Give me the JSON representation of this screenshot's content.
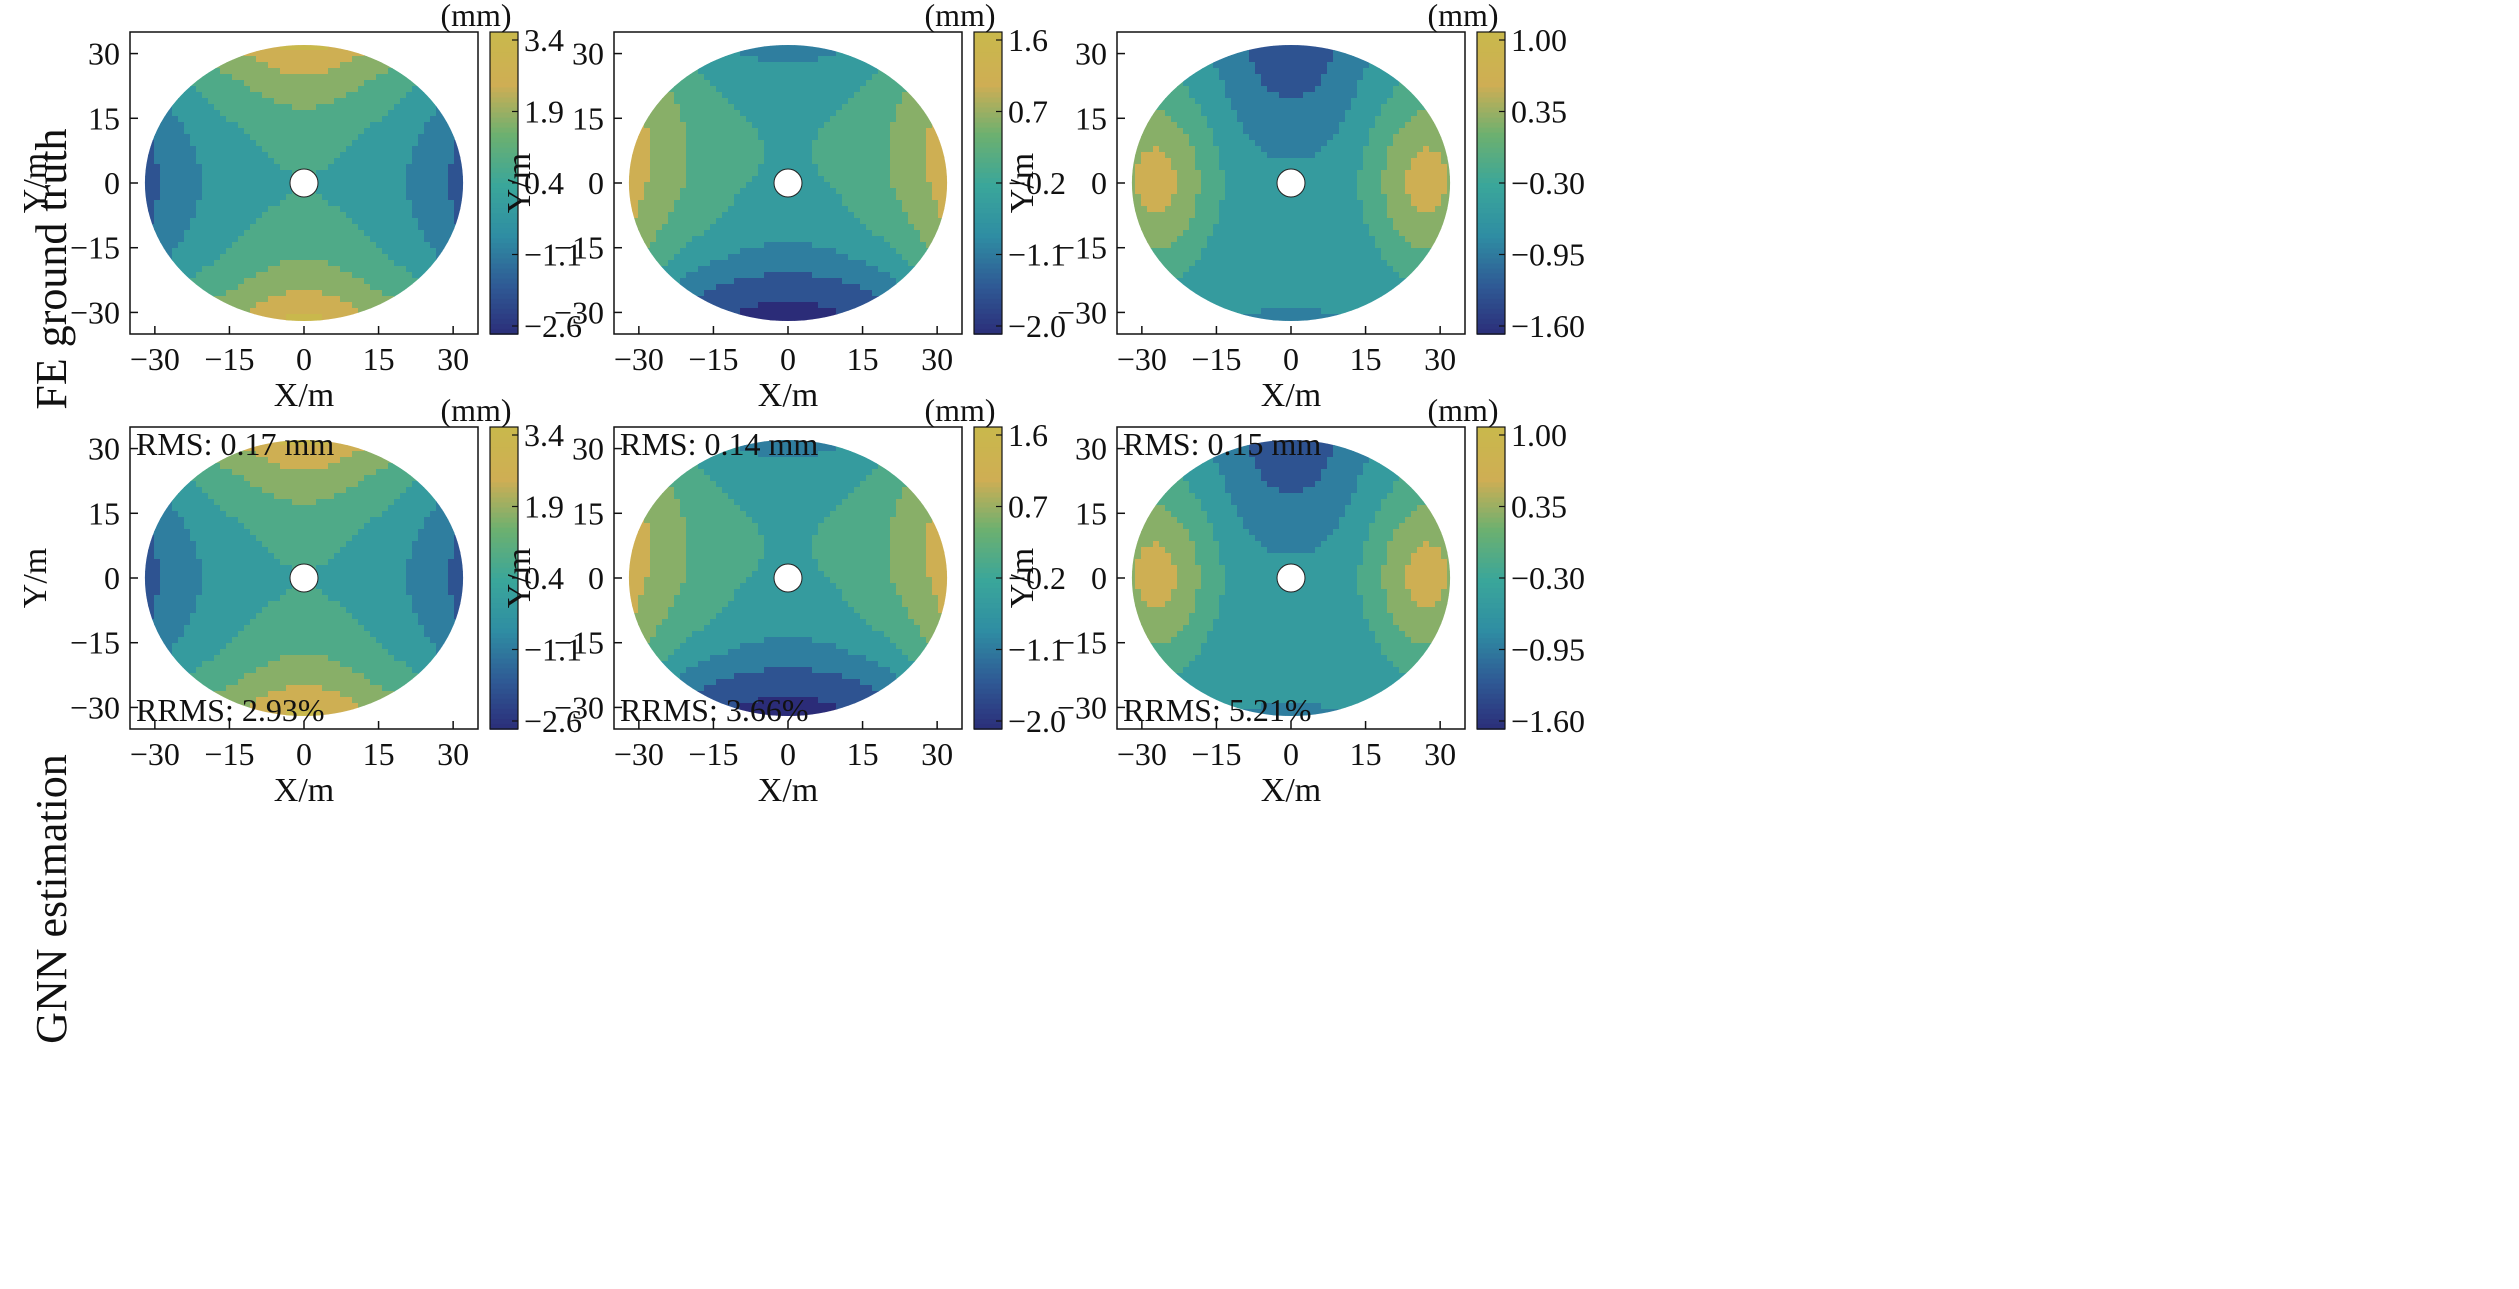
{
  "rows": [
    {
      "label": "FE ground truth",
      "ylabel": "Y/m"
    },
    {
      "label": "GNN estimation",
      "ylabel": "Y/m"
    }
  ],
  "colormap": [
    "#2b2c78",
    "#2f5a95",
    "#2f8da3",
    "#3aa69a",
    "#6cb070",
    "#cfae54",
    "#c9b84c"
  ],
  "chart_data": [
    {
      "type": "heatmap",
      "row": 0,
      "col": 0,
      "xlabel": "X/m",
      "ylabel": "Y/m",
      "xlim": [
        -35,
        35
      ],
      "ylim": [
        -35,
        35
      ],
      "xticks": [
        -30,
        -15,
        0,
        15,
        30
      ],
      "yticks": [
        -30,
        -15,
        0,
        15,
        30
      ],
      "colorbar": {
        "unit": "(mm)",
        "min": -2.6,
        "max": 3.4,
        "ticks": [
          "3.4",
          "1.9",
          "0.4",
          "−1.1",
          "−2.6"
        ]
      },
      "pattern": "saddle",
      "rms": null,
      "rrms": null
    },
    {
      "type": "heatmap",
      "row": 0,
      "col": 1,
      "xlabel": "X/m",
      "ylabel": "Y/m",
      "xlim": [
        -35,
        35
      ],
      "ylim": [
        -35,
        35
      ],
      "xticks": [
        -30,
        -15,
        0,
        15,
        30
      ],
      "yticks": [
        -30,
        -15,
        0,
        15,
        30
      ],
      "colorbar": {
        "unit": "(mm)",
        "min": -2.0,
        "max": 1.6,
        "ticks": [
          "1.6",
          "0.7",
          "−0.2",
          "−1.1",
          "−2.0"
        ]
      },
      "pattern": "hourglass",
      "rms": null,
      "rrms": null
    },
    {
      "type": "heatmap",
      "row": 0,
      "col": 2,
      "xlabel": "X/m",
      "ylabel": "Y/m",
      "xlim": [
        -35,
        35
      ],
      "ylim": [
        -35,
        35
      ],
      "xticks": [
        -30,
        -15,
        0,
        15,
        30
      ],
      "yticks": [
        -30,
        -15,
        0,
        15,
        30
      ],
      "colorbar": {
        "unit": "(mm)",
        "min": -1.6,
        "max": 1.0,
        "ticks": [
          "1.00",
          "0.35",
          "−0.30",
          "−0.95",
          "−1.60"
        ]
      },
      "pattern": "sides",
      "rms": null,
      "rrms": null
    },
    {
      "type": "heatmap",
      "row": 1,
      "col": 0,
      "xlabel": "X/m",
      "ylabel": "Y/m",
      "xlim": [
        -35,
        35
      ],
      "ylim": [
        -35,
        35
      ],
      "xticks": [
        -30,
        -15,
        0,
        15,
        30
      ],
      "yticks": [
        -30,
        -15,
        0,
        15,
        30
      ],
      "colorbar": {
        "unit": "(mm)",
        "min": -2.6,
        "max": 3.4,
        "ticks": [
          "3.4",
          "1.9",
          "0.4",
          "−1.1",
          "−2.6"
        ]
      },
      "pattern": "saddle",
      "rms": "RMS: 0.17 mm",
      "rrms": "RRMS: 2.93%"
    },
    {
      "type": "heatmap",
      "row": 1,
      "col": 1,
      "xlabel": "X/m",
      "ylabel": "Y/m",
      "xlim": [
        -35,
        35
      ],
      "ylim": [
        -35,
        35
      ],
      "xticks": [
        -30,
        -15,
        0,
        15,
        30
      ],
      "yticks": [
        -30,
        -15,
        0,
        15,
        30
      ],
      "colorbar": {
        "unit": "(mm)",
        "min": -2.0,
        "max": 1.6,
        "ticks": [
          "1.6",
          "0.7",
          "−0.2",
          "−1.1",
          "−2.0"
        ]
      },
      "pattern": "hourglass",
      "rms": "RMS: 0.14 mm",
      "rrms": "RRMS: 3.66%"
    },
    {
      "type": "heatmap",
      "row": 1,
      "col": 2,
      "xlabel": "X/m",
      "ylabel": "Y/m",
      "xlim": [
        -35,
        35
      ],
      "ylim": [
        -35,
        35
      ],
      "xticks": [
        -30,
        -15,
        0,
        15,
        30
      ],
      "yticks": [
        -30,
        -15,
        0,
        15,
        30
      ],
      "colorbar": {
        "unit": "(mm)",
        "min": -1.6,
        "max": 1.0,
        "ticks": [
          "1.00",
          "0.35",
          "−0.30",
          "−0.95",
          "−1.60"
        ]
      },
      "pattern": "sides",
      "rms": "RMS: 0.15 mm",
      "rrms": "RRMS: 5.21%"
    }
  ]
}
